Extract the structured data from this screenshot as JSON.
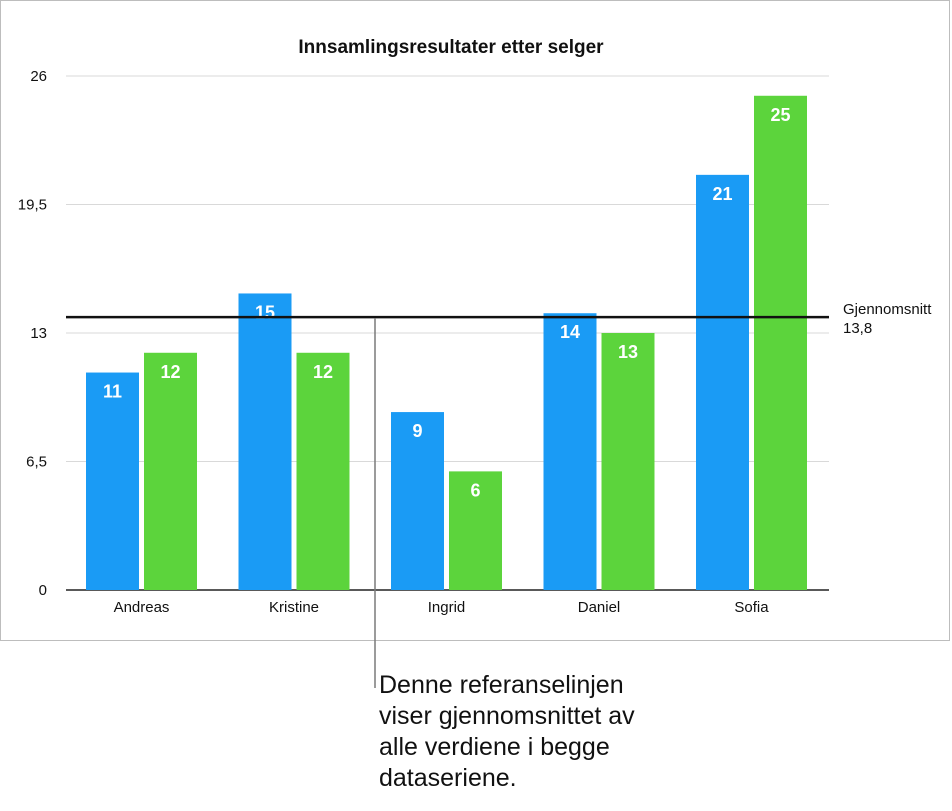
{
  "chart_data": {
    "type": "bar",
    "title": "Innsamlingsresultater etter selger",
    "categories": [
      "Andreas",
      "Kristine",
      "Ingrid",
      "Daniel",
      "Sofia"
    ],
    "series": [
      {
        "values": [
          11,
          15,
          9,
          14,
          21
        ],
        "color": "#1a9bf5"
      },
      {
        "values": [
          12,
          12,
          6,
          13,
          25
        ],
        "color": "#5cd43c"
      }
    ],
    "yticks": [
      "0",
      "6,5",
      "13",
      "19,5",
      "26"
    ],
    "ylim": [
      0,
      26
    ],
    "grid": true,
    "reference_line": {
      "label": "Gjennomsnitt",
      "value": 13.8,
      "value_label": "13,8"
    }
  },
  "callout": {
    "lines": [
      "Denne referanselinjen",
      "viser gjennomsnittet av",
      "alle verdiene i begge",
      "dataseriene."
    ]
  }
}
